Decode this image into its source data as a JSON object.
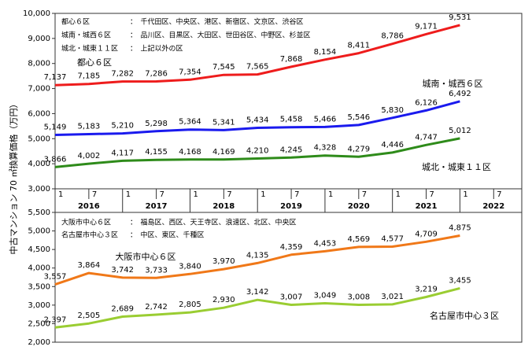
{
  "y_label": "中古マンション 70 ㎡換算価格（万円）",
  "x_axis": {
    "ticks": [
      "1",
      "7",
      "1",
      "7",
      "1",
      "7",
      "1",
      "7",
      "1",
      "7",
      "1",
      "7",
      "1",
      "7"
    ],
    "years": [
      "2016",
      "2017",
      "2018",
      "2019",
      "2020",
      "2021",
      "2022"
    ]
  },
  "chart_data": [
    {
      "type": "line",
      "notes": [
        {
          "name": "都心６区",
          "members": "：　千代田区、中央区、港区、新宿区、文京区、渋谷区"
        },
        {
          "name": "城南・城西６区",
          "members": "：　品川区、目黒区、大田区、世田谷区、中野区、杉並区"
        },
        {
          "name": "城北・城東１１区",
          "members": "：　上記以外の区"
        }
      ],
      "x": [
        "2016-01",
        "2016-07",
        "2017-01",
        "2017-07",
        "2018-01",
        "2018-07",
        "2019-01",
        "2019-07",
        "2020-01",
        "2020-07",
        "2021-01",
        "2021-07",
        "2022-01"
      ],
      "xlim": [
        "2016-01",
        "2022-12"
      ],
      "ylim": [
        3000,
        10000
      ],
      "yticks": [
        {
          "value": 3000,
          "label": "3,000"
        },
        {
          "value": 4000,
          "label": "4,000"
        },
        {
          "value": 5000,
          "label": "5,000"
        },
        {
          "value": 6000,
          "label": "6,000"
        },
        {
          "value": 7000,
          "label": "7,000"
        },
        {
          "value": 8000,
          "label": "8,000"
        },
        {
          "value": 9000,
          "label": "9,000"
        },
        {
          "value": 10000,
          "label": "10,000"
        }
      ],
      "series": [
        {
          "name": "都心６区",
          "color": "#ee1c1c",
          "values": [
            7137,
            7185,
            7282,
            7286,
            7354,
            7545,
            7565,
            7868,
            8154,
            8411,
            8786,
            9171,
            9531
          ],
          "value_labels": [
            "7,137",
            "7,185",
            "7,282",
            "7,286",
            "7,354",
            "7,545",
            "7,565",
            "7,868",
            "8,154",
            "8,411",
            "8,786",
            "9,171",
            "9,531"
          ]
        },
        {
          "name": "城南・城西６区",
          "color": "#1a1aee",
          "values": [
            5149,
            5183,
            5210,
            5298,
            5364,
            5341,
            5434,
            5458,
            5466,
            5546,
            5830,
            6126,
            6492
          ],
          "value_labels": [
            "5,149",
            "5,183",
            "5,210",
            "5,298",
            "5,364",
            "5,341",
            "5,434",
            "5,458",
            "5,466",
            "5,546",
            "5,830",
            "6,126",
            "6,492"
          ]
        },
        {
          "name": "城北・城東１１区",
          "color": "#2e8b1a",
          "values": [
            3866,
            4002,
            4117,
            4155,
            4168,
            4169,
            4210,
            4245,
            4328,
            4279,
            4446,
            4747,
            5012
          ],
          "value_labels": [
            "3,866",
            "4,002",
            "4,117",
            "4,155",
            "4,168",
            "4,169",
            "4,210",
            "4,245",
            "4,328",
            "4,279",
            "4,446",
            "4,747",
            "5,012"
          ]
        }
      ]
    },
    {
      "type": "line",
      "notes": [
        {
          "name": "大阪市中心６区",
          "members": "：　福島区、西区、天王寺区、浪速区、北区、中央区"
        },
        {
          "name": "名古屋市中心３区",
          "members": "：　中区、東区、千種区"
        }
      ],
      "x": [
        "2016-01",
        "2016-07",
        "2017-01",
        "2017-07",
        "2018-01",
        "2018-07",
        "2019-01",
        "2019-07",
        "2020-01",
        "2020-07",
        "2021-01",
        "2021-07",
        "2022-01"
      ],
      "xlim": [
        "2016-01",
        "2022-12"
      ],
      "ylim": [
        2000,
        5500
      ],
      "yticks": [
        {
          "value": 2000,
          "label": "2,000"
        },
        {
          "value": 2500,
          "label": "2,500"
        },
        {
          "value": 3000,
          "label": "3,000"
        },
        {
          "value": 3500,
          "label": "3,500"
        },
        {
          "value": 4000,
          "label": "4,000"
        },
        {
          "value": 4500,
          "label": "4,500"
        },
        {
          "value": 5000,
          "label": "5,000"
        },
        {
          "value": 5500,
          "label": "5,500"
        }
      ],
      "series": [
        {
          "name": "大阪市中心６区",
          "color": "#f07818",
          "values": [
            3557,
            3864,
            3742,
            3733,
            3840,
            3970,
            4135,
            4359,
            4453,
            4569,
            4577,
            4709,
            4875
          ],
          "value_labels": [
            "3,557",
            "3,864",
            "3,742",
            "3,733",
            "3,840",
            "3,970",
            "4,135",
            "4,359",
            "4,453",
            "4,569",
            "4,577",
            "4,709",
            "4,875"
          ]
        },
        {
          "name": "名古屋市中心３区",
          "color": "#9acd32",
          "values": [
            2397,
            2505,
            2689,
            2742,
            2805,
            2930,
            3142,
            3007,
            3049,
            3008,
            3021,
            3219,
            3455
          ],
          "value_labels": [
            "2,397",
            "2,505",
            "2,689",
            "2,742",
            "2,805",
            "2,930",
            "3,142",
            "3,007",
            "3,049",
            "3,008",
            "3,021",
            "3,219",
            "3,455"
          ]
        }
      ]
    }
  ]
}
